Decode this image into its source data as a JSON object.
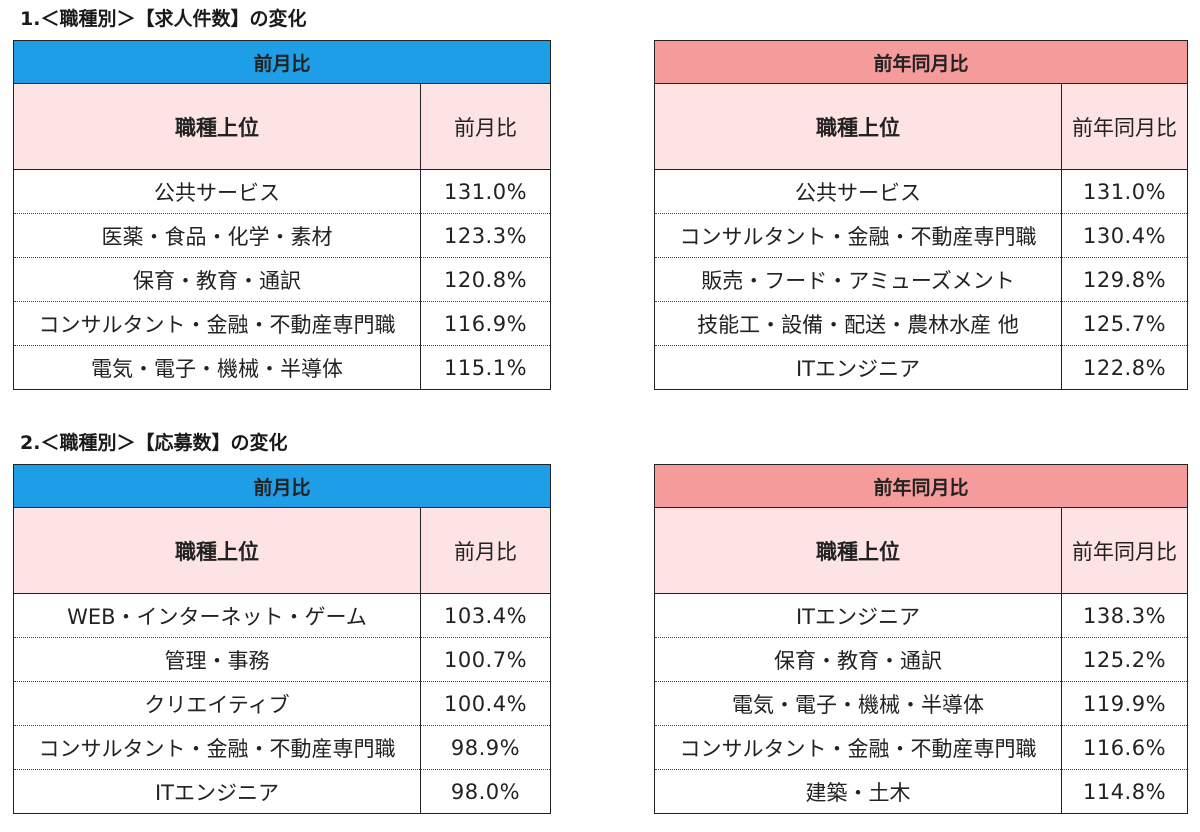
{
  "sections": [
    {
      "title": "1.＜職種別＞【求人件数】の変化",
      "mom": {
        "caption": "前月比",
        "col_rank": "職種上位",
        "col_value": "前月比",
        "rows": [
          {
            "name": "公共サービス",
            "value": "131.0%"
          },
          {
            "name": "医薬・食品・化学・素材",
            "value": "123.3%"
          },
          {
            "name": "保育・教育・通訳",
            "value": "120.8%"
          },
          {
            "name": "コンサルタント・金融・不動産専門職",
            "value": "116.9%"
          },
          {
            "name": "電気・電子・機械・半導体",
            "value": "115.1%"
          }
        ]
      },
      "yoy": {
        "caption": "前年同月比",
        "col_rank": "職種上位",
        "col_value": "前年同月比",
        "rows": [
          {
            "name": "公共サービス",
            "value": "131.0%"
          },
          {
            "name": "コンサルタント・金融・不動産専門職",
            "value": "130.4%"
          },
          {
            "name": "販売・フード・アミューズメント",
            "value": "129.8%"
          },
          {
            "name": "技能工・設備・配送・農林水産 他",
            "value": "125.7%"
          },
          {
            "name": "ITエンジニア",
            "value": "122.8%"
          }
        ]
      }
    },
    {
      "title": "2.＜職種別＞【応募数】の変化",
      "mom": {
        "caption": "前月比",
        "col_rank": "職種上位",
        "col_value": "前月比",
        "rows": [
          {
            "name": "WEB・インターネット・ゲーム",
            "value": "103.4%"
          },
          {
            "name": "管理・事務",
            "value": "100.7%"
          },
          {
            "name": "クリエイティブ",
            "value": "100.4%"
          },
          {
            "name": "コンサルタント・金融・不動産専門職",
            "value": "98.9%"
          },
          {
            "name": "ITエンジニア",
            "value": "98.0%"
          }
        ]
      },
      "yoy": {
        "caption": "前年同月比",
        "col_rank": "職種上位",
        "col_value": "前年同月比",
        "rows": [
          {
            "name": "ITエンジニア",
            "value": "138.3%"
          },
          {
            "name": "保育・教育・通訳",
            "value": "125.2%"
          },
          {
            "name": "電気・電子・機械・半導体",
            "value": "119.9%"
          },
          {
            "name": "コンサルタント・金融・不動産専門職",
            "value": "116.6%"
          },
          {
            "name": "建築・土木",
            "value": "114.8%"
          }
        ]
      }
    }
  ],
  "colors": {
    "mom_header": "#1d9ee6",
    "yoy_header": "#f59b9b",
    "column_header_bg": "#fde3e3"
  }
}
